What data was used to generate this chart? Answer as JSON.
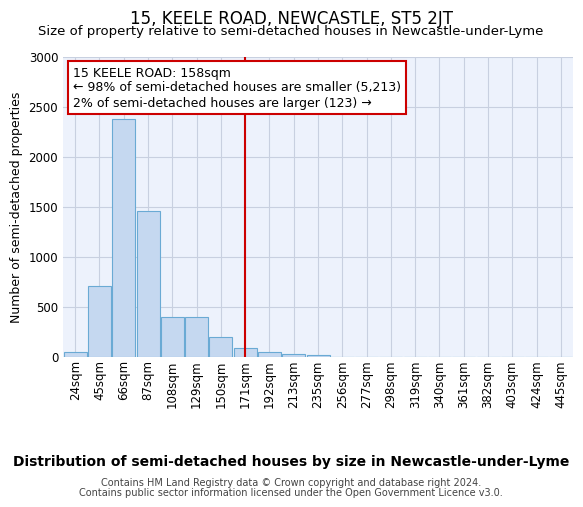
{
  "title": "15, KEELE ROAD, NEWCASTLE, ST5 2JT",
  "subtitle": "Size of property relative to semi-detached houses in Newcastle-under-Lyme",
  "xlabel": "Distribution of semi-detached houses by size in Newcastle-under-Lyme",
  "ylabel": "Number of semi-detached properties",
  "footer_line1": "Contains HM Land Registry data © Crown copyright and database right 2024.",
  "footer_line2": "Contains public sector information licensed under the Open Government Licence v3.0.",
  "bar_labels": [
    "24sqm",
    "45sqm",
    "66sqm",
    "87sqm",
    "108sqm",
    "129sqm",
    "150sqm",
    "171sqm",
    "192sqm",
    "213sqm",
    "235sqm",
    "256sqm",
    "277sqm",
    "298sqm",
    "319sqm",
    "340sqm",
    "361sqm",
    "382sqm",
    "403sqm",
    "424sqm",
    "445sqm"
  ],
  "bar_values": [
    55,
    710,
    2380,
    1460,
    400,
    400,
    200,
    90,
    50,
    35,
    20,
    0,
    0,
    0,
    0,
    0,
    0,
    0,
    0,
    0,
    0
  ],
  "bar_color": "#c5d8f0",
  "bar_edgecolor": "#6aaad4",
  "vline_x": 7.0,
  "vline_color": "#cc0000",
  "ylim": [
    0,
    3000
  ],
  "annotation_title": "15 KEELE ROAD: 158sqm",
  "annotation_line1": "← 98% of semi-detached houses are smaller (5,213)",
  "annotation_line2": "2% of semi-detached houses are larger (123) →",
  "bg_color": "#edf2fc",
  "grid_color": "#c8d0e0",
  "title_fontsize": 12,
  "subtitle_fontsize": 9.5,
  "xlabel_fontsize": 10,
  "ylabel_fontsize": 9,
  "tick_fontsize": 8.5,
  "ann_fontsize": 9,
  "footer_fontsize": 7
}
